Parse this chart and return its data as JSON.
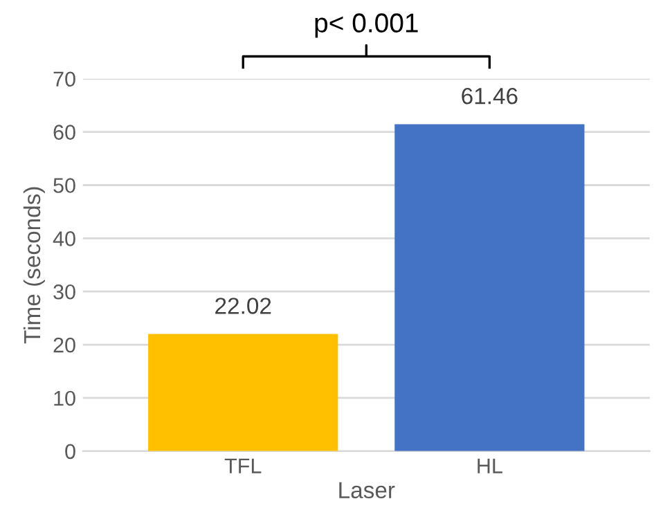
{
  "chart_data": {
    "type": "bar",
    "categories": [
      "TFL",
      "HL"
    ],
    "values": [
      22.02,
      61.46
    ],
    "colors": [
      "#ffc000",
      "#4472c4"
    ],
    "xlabel": "Laser",
    "ylabel": "Time (seconds)",
    "ylim": [
      0,
      70
    ],
    "yticks": [
      0,
      10,
      20,
      30,
      40,
      50,
      60,
      70
    ],
    "grid": "y",
    "data_labels": true,
    "annotations": [
      "p< 0.001"
    ]
  }
}
